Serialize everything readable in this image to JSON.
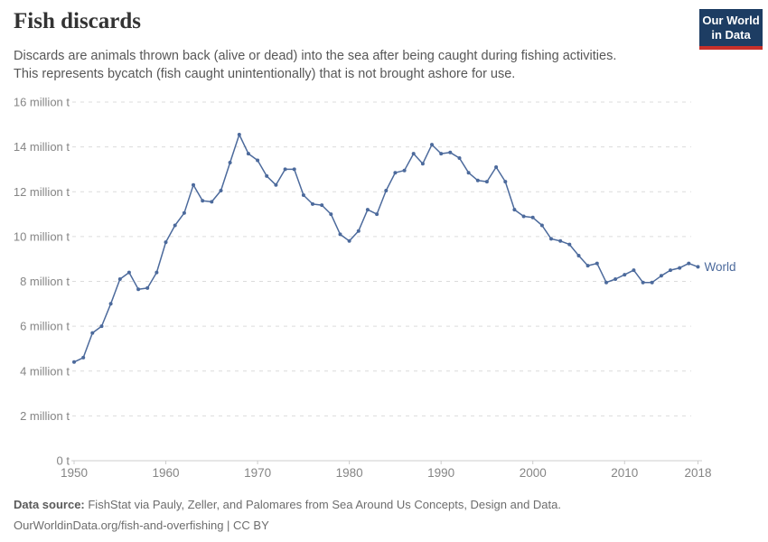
{
  "header": {
    "title": "Fish discards",
    "subtitle_line1": "Discards are animals thrown back (alive or dead) into the sea after being caught during fishing activities.",
    "subtitle_line2": "This represents bycatch (fish caught unintentionally) that is not brought ashore for use.",
    "logo": {
      "line1": "Our World",
      "line2": "in Data",
      "bg_color": "#1d3d63",
      "accent_color": "#c7302a"
    }
  },
  "chart_data": {
    "type": "line",
    "title": "Fish discards",
    "xlabel": "",
    "ylabel": "",
    "xlim": [
      1950,
      2018
    ],
    "ylim": [
      0,
      16
    ],
    "grid": "horizontal-dashed",
    "legend_position": "end-of-line",
    "x_ticks": [
      1950,
      1960,
      1970,
      1980,
      1990,
      2000,
      2010,
      2018
    ],
    "y_ticks": [
      0,
      2,
      4,
      6,
      8,
      10,
      12,
      14,
      16
    ],
    "y_tick_labels": [
      "0 t",
      "2 million t",
      "4 million t",
      "6 million t",
      "8 million t",
      "10 million t",
      "12 million t",
      "14 million t",
      "16 million t"
    ],
    "unit": "million tonnes",
    "series": [
      {
        "name": "World",
        "color": "#4c6a9c",
        "x": [
          1950,
          1951,
          1952,
          1953,
          1954,
          1955,
          1956,
          1957,
          1958,
          1959,
          1960,
          1961,
          1962,
          1963,
          1964,
          1965,
          1966,
          1967,
          1968,
          1969,
          1970,
          1971,
          1972,
          1973,
          1974,
          1975,
          1976,
          1977,
          1978,
          1979,
          1980,
          1981,
          1982,
          1983,
          1984,
          1985,
          1986,
          1987,
          1988,
          1989,
          1990,
          1991,
          1992,
          1993,
          1994,
          1995,
          1996,
          1997,
          1998,
          1999,
          2000,
          2001,
          2002,
          2003,
          2004,
          2005,
          2006,
          2007,
          2008,
          2009,
          2010,
          2011,
          2012,
          2013,
          2014,
          2015,
          2016,
          2017,
          2018
        ],
        "values": [
          4.4,
          4.6,
          5.7,
          6.0,
          7.0,
          8.1,
          8.4,
          7.65,
          7.7,
          8.4,
          9.75,
          10.5,
          11.05,
          12.3,
          11.6,
          11.55,
          12.05,
          13.3,
          14.55,
          13.7,
          13.4,
          12.7,
          12.3,
          13.0,
          13.0,
          11.85,
          11.45,
          11.4,
          11.0,
          10.1,
          9.8,
          10.25,
          11.2,
          11.0,
          12.05,
          12.85,
          12.95,
          13.7,
          13.25,
          14.1,
          13.7,
          13.75,
          13.5,
          12.85,
          12.5,
          12.45,
          13.1,
          12.45,
          11.2,
          10.9,
          10.85,
          10.5,
          9.9,
          9.8,
          9.65,
          9.15,
          8.7,
          8.8,
          7.95,
          8.1,
          8.3,
          8.5,
          7.95,
          7.95,
          8.25,
          8.5,
          8.6,
          8.8,
          8.65
        ]
      }
    ],
    "colors": {
      "gridline": "#dcdcdc",
      "axis_line": "#cccccc",
      "tick_label": "#858585"
    }
  },
  "footer": {
    "source_label": "Data source:",
    "source_text": " FishStat via Pauly, Zeller, and Palomares from Sea Around Us Concepts, Design and Data.",
    "link_text": "OurWorldinData.org/fish-and-overfishing | CC BY"
  }
}
